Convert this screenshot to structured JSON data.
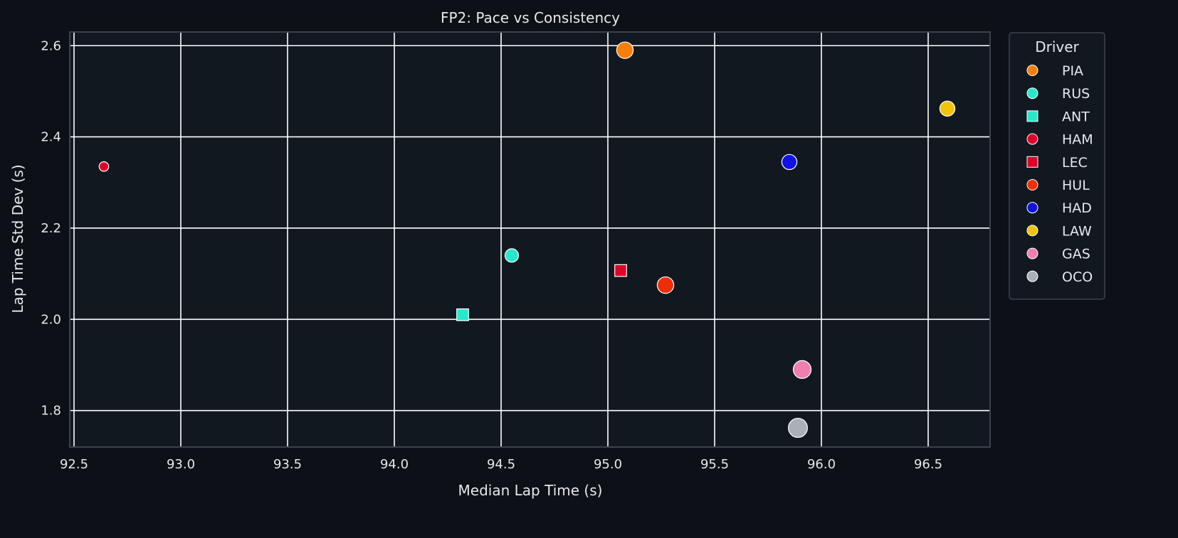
{
  "chart_data": {
    "type": "scatter",
    "title": "FP2: Pace vs Consistency",
    "xlabel": "Median Lap Time (s)",
    "ylabel": "Lap Time Std Dev (s)",
    "xlim": [
      92.48,
      96.79
    ],
    "ylim": [
      1.72,
      2.63
    ],
    "xticks": [
      92.5,
      93.0,
      93.5,
      94.0,
      94.5,
      95.0,
      95.5,
      96.0,
      96.5
    ],
    "yticks": [
      1.8,
      2.0,
      2.2,
      2.4,
      2.6
    ],
    "grid": true,
    "legend": {
      "title": "Driver",
      "placement": "outside-right"
    },
    "series": [
      {
        "name": "PIA",
        "marker": "circle",
        "color": "#f57f0a",
        "x": 95.08,
        "y": 2.59,
        "size": 3
      },
      {
        "name": "RUS",
        "marker": "circle",
        "color": "#27e8c9",
        "x": 94.55,
        "y": 2.14,
        "size": 2
      },
      {
        "name": "ANT",
        "marker": "square",
        "color": "#27e8c9",
        "x": 94.32,
        "y": 2.01,
        "size": 2
      },
      {
        "name": "HAM",
        "marker": "circle",
        "color": "#e0002a",
        "x": 92.64,
        "y": 2.335,
        "size": 1
      },
      {
        "name": "LEC",
        "marker": "square",
        "color": "#e0002a",
        "x": 95.06,
        "y": 2.107,
        "size": 2
      },
      {
        "name": "HUL",
        "marker": "circle",
        "color": "#f02e06",
        "x": 95.27,
        "y": 2.075,
        "size": 3
      },
      {
        "name": "HAD",
        "marker": "circle",
        "color": "#1010e8",
        "x": 95.85,
        "y": 2.345,
        "size": 2.5
      },
      {
        "name": "LAW",
        "marker": "circle",
        "color": "#f0c409",
        "x": 96.59,
        "y": 2.462,
        "size": 2.5
      },
      {
        "name": "GAS",
        "marker": "circle",
        "color": "#f07eb0",
        "x": 95.91,
        "y": 1.89,
        "size": 3.5
      },
      {
        "name": "OCO",
        "marker": "circle",
        "color": "#aab0b6",
        "x": 95.89,
        "y": 1.762,
        "size": 4
      }
    ]
  },
  "colors": {
    "figure_background": "#0d1017",
    "axes_background": "#121820",
    "grid": "#ffffff",
    "text": "#e6e8ec",
    "spine": "#3b4250"
  }
}
